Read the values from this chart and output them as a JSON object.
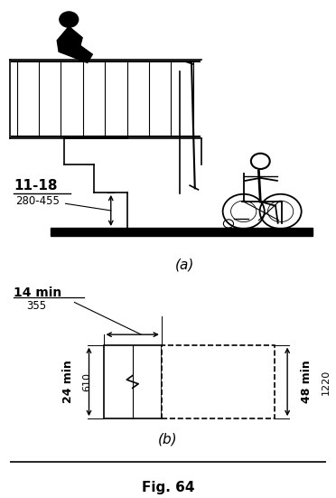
{
  "fig_label": "Fig. 64",
  "sub_a_label": "(a)",
  "sub_b_label": "(b)",
  "dim_a_text1": "11-18",
  "dim_a_text2": "280-455",
  "dim_b_14_text1": "14 min",
  "dim_b_14_text2": "355",
  "dim_b_24_text1": "24 min",
  "dim_b_24_text2": "610",
  "dim_b_48_text1": "48 min",
  "dim_b_48_text2": "1220",
  "line_color": "#000000",
  "bg_color": "#ffffff"
}
